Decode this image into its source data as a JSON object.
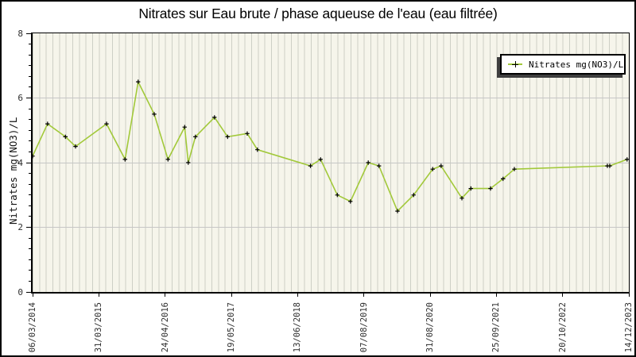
{
  "chart_data": {
    "type": "line",
    "title": "Nitrates sur Eau brute / phase aqueuse de l'eau (eau filtrée)",
    "ylabel": "Nitrates mg(NO3)/L",
    "xlabel": "",
    "ylim": [
      0,
      8
    ],
    "y_ticks": [
      0,
      2,
      4,
      6,
      8
    ],
    "y_minor_divisions_per_major": 6,
    "x_tick_labels": [
      "06/03/2014",
      "31/03/2015",
      "24/04/2016",
      "19/05/2017",
      "13/06/2018",
      "07/08/2019",
      "31/08/2020",
      "25/09/2021",
      "20/10/2022",
      "14/12/2023"
    ],
    "x_minor_per_major": 10,
    "grid": {
      "horizontal_at": [
        2,
        4,
        6
      ],
      "vertical_stripes": true
    },
    "legend": {
      "label": "Nitrates mg(NO3)/L",
      "position": "top-right",
      "marker": "plus-on-line"
    },
    "colors": {
      "line": "#a2c93a",
      "marker": "#000000",
      "plot_bg": "#f6f5eb",
      "stripe": "#cdcfc5",
      "hgrid": "#c6c6c6",
      "shadow": "#3f3f3f"
    },
    "series": [
      {
        "name": "Nitrates mg(NO3)/L",
        "points": [
          {
            "x": 0.0,
            "v": 4.2
          },
          {
            "x": 0.025,
            "v": 5.2
          },
          {
            "x": 0.055,
            "v": 4.8
          },
          {
            "x": 0.072,
            "v": 4.5
          },
          {
            "x": 0.124,
            "v": 5.2
          },
          {
            "x": 0.155,
            "v": 4.1
          },
          {
            "x": 0.177,
            "v": 6.5
          },
          {
            "x": 0.204,
            "v": 5.5
          },
          {
            "x": 0.227,
            "v": 4.1
          },
          {
            "x": 0.255,
            "v": 5.1
          },
          {
            "x": 0.261,
            "v": 4.0
          },
          {
            "x": 0.273,
            "v": 4.8
          },
          {
            "x": 0.305,
            "v": 5.4
          },
          {
            "x": 0.327,
            "v": 4.8
          },
          {
            "x": 0.36,
            "v": 4.9
          },
          {
            "x": 0.377,
            "v": 4.4
          },
          {
            "x": 0.466,
            "v": 3.9
          },
          {
            "x": 0.483,
            "v": 4.1
          },
          {
            "x": 0.511,
            "v": 3.0
          },
          {
            "x": 0.533,
            "v": 2.8
          },
          {
            "x": 0.563,
            "v": 4.0
          },
          {
            "x": 0.581,
            "v": 3.9
          },
          {
            "x": 0.612,
            "v": 2.5
          },
          {
            "x": 0.639,
            "v": 3.0
          },
          {
            "x": 0.671,
            "v": 3.8
          },
          {
            "x": 0.685,
            "v": 3.9
          },
          {
            "x": 0.72,
            "v": 2.9
          },
          {
            "x": 0.735,
            "v": 3.2
          },
          {
            "x": 0.768,
            "v": 3.2
          },
          {
            "x": 0.789,
            "v": 3.5
          },
          {
            "x": 0.808,
            "v": 3.8
          },
          {
            "x": 0.964,
            "v": 3.9
          },
          {
            "x": 0.968,
            "v": 3.9
          },
          {
            "x": 0.997,
            "v": 4.1
          }
        ]
      }
    ]
  }
}
